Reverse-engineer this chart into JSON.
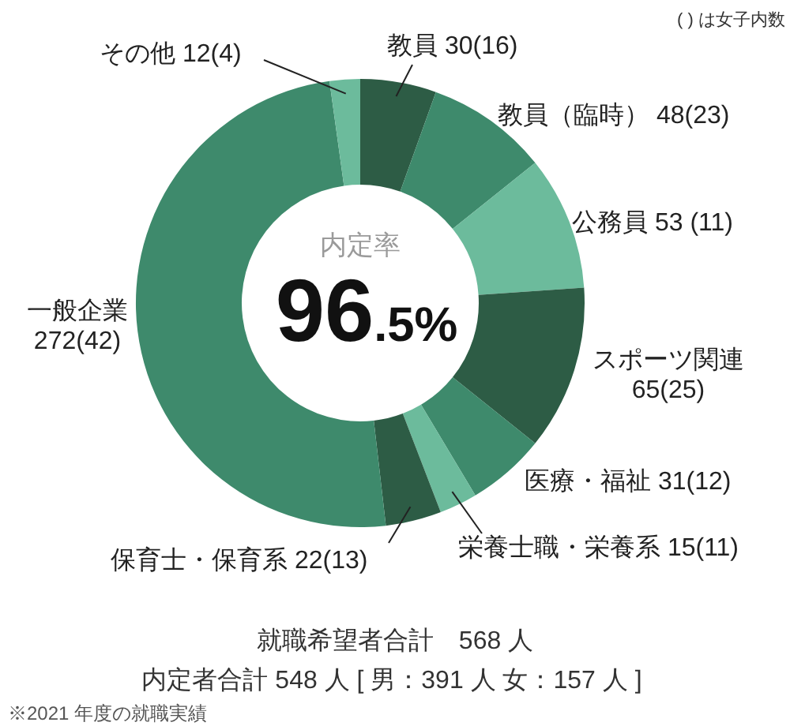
{
  "chart_data": {
    "type": "donut",
    "categories": [
      "教員",
      "教員（臨時）",
      "公務員",
      "スポーツ関連",
      "医療・福祉",
      "栄養士職・栄養系",
      "保育士・保育系",
      "一般企業",
      "その他"
    ],
    "values": [
      30,
      48,
      53,
      65,
      31,
      15,
      22,
      272,
      12
    ],
    "value_labels": [
      "30(16)",
      "48(23)",
      "53 (11)",
      "65(25)",
      "31(12)",
      "15(11)",
      "22(13)",
      "272(42)",
      "12(4)"
    ],
    "colors": [
      "#2d5c45",
      "#3e8a6c",
      "#6cbb9c",
      "#2d5c45",
      "#3e8a6c",
      "#6cbb9c",
      "#2d5c45",
      "#3e8a6c",
      "#6cbb9c"
    ],
    "annotations": [
      "( ) は女子内数",
      "内定率",
      "96.5%",
      "就職希望者合計　568 人",
      "内定者合計 548 人 [ 男：391 人 女：157 人 ]",
      "※2021 年度の就職実績"
    ]
  }
}
